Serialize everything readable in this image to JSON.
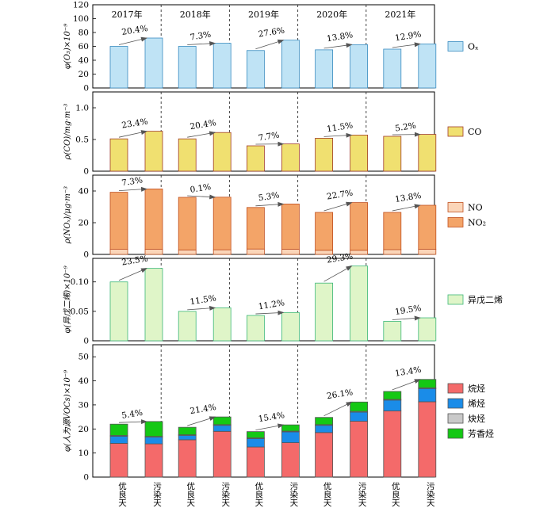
{
  "chart_data": {
    "type": "bar",
    "years": [
      "2017年",
      "2018年",
      "2019年",
      "2020年",
      "2021年"
    ],
    "categories": [
      "优良天",
      "污染天"
    ],
    "panels": [
      {
        "id": "o3",
        "ylabel": "φ(O₃)×10⁻⁹",
        "ylim": [
          0,
          120
        ],
        "yticks": [
          0,
          20,
          40,
          60,
          80,
          100,
          120
        ],
        "ytick_labels": [
          "0",
          "20",
          "40",
          "60",
          "80",
          "100",
          "120"
        ],
        "show_years": true,
        "bar_type": "single",
        "fill": "#bfe3f5",
        "stroke": "#3a8cc0",
        "legend": [
          {
            "label": "Oₓ",
            "color": "#bfe3f5",
            "stroke": "#3a8cc0"
          }
        ],
        "values": [
          [
            60,
            72
          ],
          [
            60,
            64.5
          ],
          [
            54,
            69
          ],
          [
            55,
            62.5
          ],
          [
            56,
            63.5
          ]
        ],
        "changes": [
          "20.4%",
          "7.3%",
          "27.6%",
          "13.8%",
          "12.9%"
        ]
      },
      {
        "id": "co",
        "ylabel": "ρ(CO)/mg·m⁻³",
        "ylim": [
          0,
          1.25
        ],
        "yticks": [
          0,
          0.5,
          1.0
        ],
        "ytick_labels": [
          "0",
          "0.5",
          "1.0"
        ],
        "show_years": false,
        "bar_type": "single",
        "fill": "#f0e070",
        "stroke": "#a03c28",
        "legend": [
          {
            "label": "CO",
            "color": "#f0e070",
            "stroke": "#a03c28"
          }
        ],
        "values": [
          [
            0.51,
            0.63
          ],
          [
            0.51,
            0.61
          ],
          [
            0.4,
            0.43
          ],
          [
            0.52,
            0.57
          ],
          [
            0.55,
            0.58
          ]
        ],
        "changes": [
          "23.4%",
          "20.4%",
          "7.7%",
          "11.5%",
          "5.2%"
        ]
      },
      {
        "id": "nox",
        "ylabel": "ρ(NOₓ)/μg·m⁻³",
        "ylim": [
          0,
          50
        ],
        "yticks": [
          0,
          20,
          40
        ],
        "ytick_labels": [
          "0",
          "20",
          "40"
        ],
        "show_years": false,
        "bar_type": "stacked",
        "legend": [
          {
            "label": "NO",
            "color": "#fbd5b8",
            "stroke": "#c05020"
          },
          {
            "label": "NO₂",
            "color": "#f3a468",
            "stroke": "#c05020"
          }
        ],
        "stack_series": [
          "NO",
          "NO₂"
        ],
        "stack_colors": [
          "#fbd5b8",
          "#f3a468"
        ],
        "stroke": "#c05020",
        "values": [
          [
            [
              3.2,
              36.0
            ],
            [
              3.3,
              38.0
            ]
          ],
          [
            [
              2.8,
              33.2
            ],
            [
              2.9,
              33.2
            ]
          ],
          [
            [
              3.4,
              26.2
            ],
            [
              3.3,
              28.5
            ]
          ],
          [
            [
              2.6,
              23.9
            ],
            [
              2.6,
              30.1
            ]
          ],
          [
            [
              3.0,
              23.5
            ],
            [
              3.3,
              27.7
            ]
          ]
        ],
        "changes": [
          "7.3%",
          "0.1%",
          "5.3%",
          "22.7%",
          "13.8%"
        ]
      },
      {
        "id": "isoprene",
        "ylabel": "φ(异戊二烯)×10⁻⁹",
        "ylim": [
          0,
          0.14
        ],
        "yticks": [
          0,
          0.05,
          0.1
        ],
        "ytick_labels": [
          "0",
          "0.05",
          "0.10"
        ],
        "show_years": false,
        "bar_type": "single",
        "fill": "#dff5c8",
        "stroke": "#3cb878",
        "legend": [
          {
            "label": "异戊二烯",
            "color": "#dff5c8",
            "stroke": "#3cb878"
          }
        ],
        "values": [
          [
            0.1,
            0.123
          ],
          [
            0.05,
            0.056
          ],
          [
            0.043,
            0.048
          ],
          [
            0.098,
            0.127
          ],
          [
            0.033,
            0.039
          ]
        ],
        "changes": [
          "23.5%",
          "11.5%",
          "11.2%",
          "29.3%",
          "19.5%"
        ]
      },
      {
        "id": "vocs",
        "ylabel": "φ(人为源VOCs)×10⁻⁹",
        "ylim": [
          0,
          55
        ],
        "yticks": [
          0,
          10,
          20,
          30,
          40,
          50
        ],
        "ytick_labels": [
          "0",
          "10",
          "20",
          "30",
          "40",
          "50"
        ],
        "show_years": false,
        "bar_type": "stacked",
        "legend": [
          {
            "label": "烷烃",
            "color": "#f46a6a",
            "stroke": "#555555"
          },
          {
            "label": "烯烃",
            "color": "#1a8ce8",
            "stroke": "#555555"
          },
          {
            "label": "炔烃",
            "color": "#c9c9c9",
            "stroke": "#555555"
          },
          {
            "label": "芳香烃",
            "color": "#14c814",
            "stroke": "#555555"
          }
        ],
        "stack_series": [
          "烷烃",
          "烯烃",
          "炔烃",
          "芳香烃"
        ],
        "stack_colors": [
          "#f46a6a",
          "#1a8ce8",
          "#c9c9c9",
          "#14c814"
        ],
        "stroke": "#555555",
        "values": [
          [
            [
              14.0,
              3.0,
              0.3,
              4.7
            ],
            [
              13.8,
              2.8,
              0.3,
              6.2
            ]
          ],
          [
            [
              15.5,
              1.8,
              0.3,
              3.1
            ],
            [
              19.0,
              2.5,
              0.3,
              3.2
            ]
          ],
          [
            [
              12.5,
              3.5,
              0.3,
              2.6
            ],
            [
              14.3,
              4.5,
              0.3,
              2.6
            ]
          ],
          [
            [
              18.5,
              3.0,
              0.3,
              3.0
            ],
            [
              23.2,
              3.8,
              0.3,
              3.9
            ]
          ],
          [
            [
              27.5,
              4.5,
              0.3,
              3.3
            ],
            [
              31.3,
              5.5,
              0.3,
              3.5
            ]
          ]
        ],
        "changes": [
          "5.4%",
          "21.4%",
          "15.4%",
          "26.1%",
          "13.4%"
        ]
      }
    ]
  }
}
